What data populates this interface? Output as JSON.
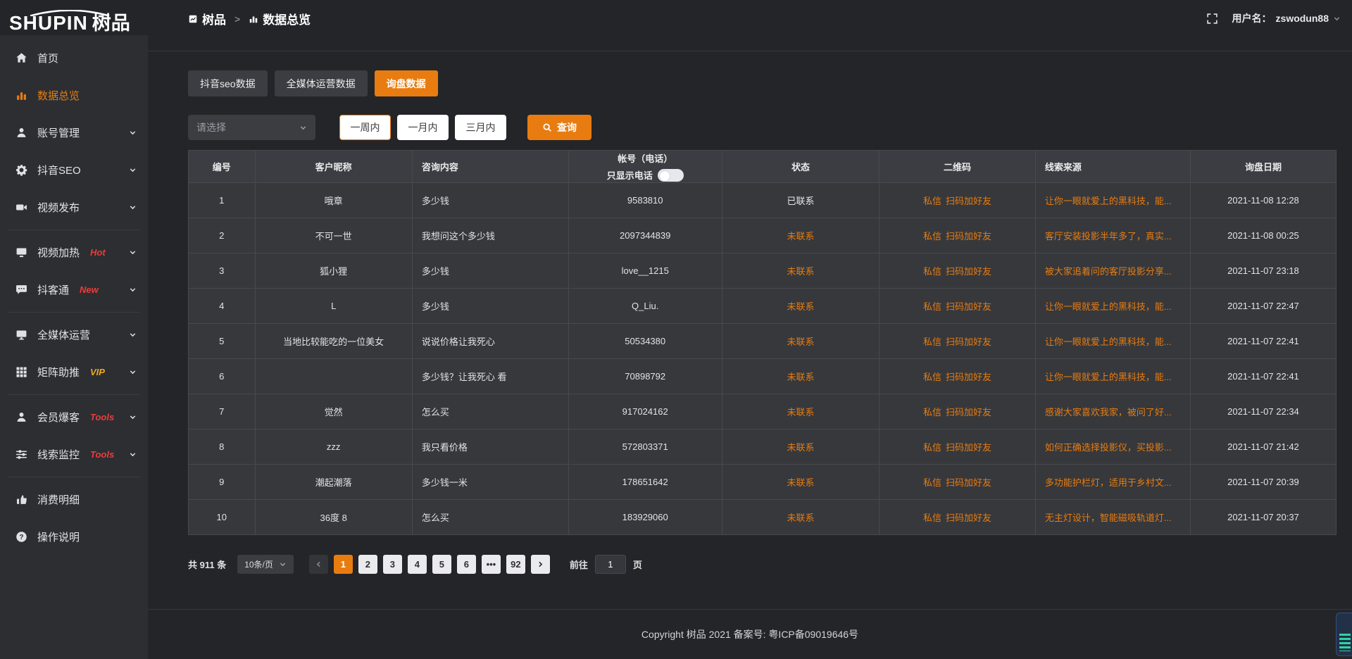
{
  "colors": {
    "accent_orange": "#e87c10",
    "badge_red": "#ee3b3b",
    "badge_gold": "#f0a91e",
    "status_pending": "#e87c10",
    "page_active": "#e87c10"
  },
  "logo": {
    "brand_en": "SHUPIN",
    "brand_cn": "树品"
  },
  "topbar": {
    "breadcrumb_root": "树品",
    "breadcrumb_current": "数据总览",
    "username_label": "用户名：",
    "username": "zswodun88"
  },
  "sidebar": {
    "items": [
      {
        "key": "home",
        "icon": "home-icon",
        "label": "首页",
        "badge": "",
        "badge_style": "",
        "chevron": false,
        "active": false,
        "divider_after": false
      },
      {
        "key": "data-overview",
        "icon": "bar-chart-icon",
        "label": "数据总览",
        "badge": "",
        "badge_style": "",
        "chevron": false,
        "active": true,
        "divider_after": false
      },
      {
        "key": "account-manage",
        "icon": "user-icon",
        "label": "账号管理",
        "badge": "",
        "badge_style": "",
        "chevron": true,
        "active": false,
        "divider_after": false
      },
      {
        "key": "douyin-seo",
        "icon": "gear-icon",
        "label": "抖音SEO",
        "badge": "",
        "badge_style": "",
        "chevron": true,
        "active": false,
        "divider_after": false
      },
      {
        "key": "video-publish",
        "icon": "camera-icon",
        "label": "视频发布",
        "badge": "",
        "badge_style": "",
        "chevron": true,
        "active": false,
        "divider_after": true
      },
      {
        "key": "video-heat",
        "icon": "heat-monitor-icon",
        "label": "视频加热",
        "badge": "Hot",
        "badge_style": "red",
        "chevron": true,
        "active": false,
        "divider_after": false
      },
      {
        "key": "douketong",
        "icon": "chat-icon",
        "label": "抖客通",
        "badge": "New",
        "badge_style": "red",
        "chevron": true,
        "active": false,
        "divider_after": true
      },
      {
        "key": "all-media",
        "icon": "monitor-icon",
        "label": "全媒体运营",
        "badge": "",
        "badge_style": "",
        "chevron": true,
        "active": false,
        "divider_after": false
      },
      {
        "key": "matrix-boost",
        "icon": "grid-icon",
        "label": "矩阵助推",
        "badge": "VIP",
        "badge_style": "gold",
        "chevron": true,
        "active": false,
        "divider_after": true
      },
      {
        "key": "member-burst",
        "icon": "member-icon",
        "label": "会员爆客",
        "badge": "Tools",
        "badge_style": "red",
        "chevron": true,
        "active": false,
        "divider_after": false
      },
      {
        "key": "clue-monitor",
        "icon": "sliders-icon",
        "label": "线索监控",
        "badge": "Tools",
        "badge_style": "red",
        "chevron": true,
        "active": false,
        "divider_after": true
      },
      {
        "key": "spend-detail",
        "icon": "spend-icon",
        "label": "消费明细",
        "badge": "",
        "badge_style": "",
        "chevron": false,
        "active": false,
        "divider_after": false
      },
      {
        "key": "help",
        "icon": "question-icon",
        "label": "操作说明",
        "badge": "",
        "badge_style": "",
        "chevron": false,
        "active": false,
        "divider_after": false
      }
    ]
  },
  "tabs": [
    {
      "key": "douyin-seo-data",
      "label": "抖音seo数据",
      "active": false
    },
    {
      "key": "all-media-data",
      "label": "全媒体运营数据",
      "active": false
    },
    {
      "key": "inquiry-data",
      "label": "询盘数据",
      "active": true
    }
  ],
  "filters": {
    "select_placeholder": "请选择",
    "range_buttons": [
      {
        "label": "一周内",
        "active": true
      },
      {
        "label": "一月内",
        "active": false
      },
      {
        "label": "三月内",
        "active": false
      }
    ],
    "search_label": "查询"
  },
  "table": {
    "columns": [
      {
        "key": "id",
        "label": "编号",
        "align": "center"
      },
      {
        "key": "nickname",
        "label": "客户昵称",
        "align": "center"
      },
      {
        "key": "content",
        "label": "咨询内容",
        "align": "left"
      },
      {
        "key": "account",
        "label": "帐号（电话）",
        "align": "center",
        "toggle_label": "只显示电话"
      },
      {
        "key": "status",
        "label": "状态",
        "align": "center"
      },
      {
        "key": "qr",
        "label": "二维码",
        "align": "center"
      },
      {
        "key": "source",
        "label": "线索来源",
        "align": "left"
      },
      {
        "key": "date",
        "label": "询盘日期",
        "align": "center"
      }
    ],
    "rows": [
      {
        "id": "1",
        "nickname": "哦章",
        "content": "多少钱",
        "account": "9583810",
        "status": "已联系",
        "contacted": true,
        "qr_links": [
          "私信",
          "扫码加好友"
        ],
        "source": "让你一眼就爱上的黑科技，能...",
        "date": "2021-11-08 12:28"
      },
      {
        "id": "2",
        "nickname": "不可一世",
        "content": "我想问这个多少钱",
        "account": "2097344839",
        "status": "未联系",
        "contacted": false,
        "qr_links": [
          "私信",
          "扫码加好友"
        ],
        "source": "客厅安装投影半年多了，真实...",
        "date": "2021-11-08 00:25"
      },
      {
        "id": "3",
        "nickname": "狐小狸",
        "content": "多少钱",
        "account": "love__1215",
        "status": "未联系",
        "contacted": false,
        "qr_links": [
          "私信",
          "扫码加好友"
        ],
        "source": "被大家追着问的客厅投影分享...",
        "date": "2021-11-07 23:18"
      },
      {
        "id": "4",
        "nickname": "L",
        "content": "多少钱",
        "account": "Q_Liu.",
        "status": "未联系",
        "contacted": false,
        "qr_links": [
          "私信",
          "扫码加好友"
        ],
        "source": "让你一眼就爱上的黑科技，能...",
        "date": "2021-11-07 22:47"
      },
      {
        "id": "5",
        "nickname": "当地比较能吃的一位美女",
        "content": "说说价格让我死心",
        "account": "50534380",
        "status": "未联系",
        "contacted": false,
        "qr_links": [
          "私信",
          "扫码加好友"
        ],
        "source": "让你一眼就爱上的黑科技，能...",
        "date": "2021-11-07 22:41"
      },
      {
        "id": "6",
        "nickname": "",
        "content": "多少钱？让我死心 看",
        "account": "70898792",
        "status": "未联系",
        "contacted": false,
        "qr_links": [
          "私信",
          "扫码加好友"
        ],
        "source": "让你一眼就爱上的黑科技，能...",
        "date": "2021-11-07 22:41"
      },
      {
        "id": "7",
        "nickname": "觉然",
        "content": "怎么买",
        "account": "917024162",
        "status": "未联系",
        "contacted": false,
        "qr_links": [
          "私信",
          "扫码加好友"
        ],
        "source": "感谢大家喜欢我家，被问了好...",
        "date": "2021-11-07 22:34"
      },
      {
        "id": "8",
        "nickname": "zzz",
        "content": "我只看价格",
        "account": "572803371",
        "status": "未联系",
        "contacted": false,
        "qr_links": [
          "私信",
          "扫码加好友"
        ],
        "source": "如何正确选择投影仪，买投影...",
        "date": "2021-11-07 21:42"
      },
      {
        "id": "9",
        "nickname": "潮起潮落",
        "content": "多少钱一米",
        "account": "178651642",
        "status": "未联系",
        "contacted": false,
        "qr_links": [
          "私信",
          "扫码加好友"
        ],
        "source": "多功能护栏灯，适用于乡村文...",
        "date": "2021-11-07 20:39"
      },
      {
        "id": "10",
        "nickname": "36度 8",
        "content": "怎么买",
        "account": "183929060",
        "status": "未联系",
        "contacted": false,
        "qr_links": [
          "私信",
          "扫码加好友"
        ],
        "source": "无主灯设计，智能磁吸轨道灯...",
        "date": "2021-11-07 20:37"
      }
    ]
  },
  "pagination": {
    "total_label": "共 911 条",
    "page_size": "10条/页",
    "pages": [
      "1",
      "2",
      "3",
      "4",
      "5",
      "6",
      "...",
      "92"
    ],
    "active_page": "1",
    "goto_label": "前往",
    "goto_value": "1",
    "page_unit": "页"
  },
  "footer": {
    "copyright": "Copyright 树品 2021 备案号: 粤ICP备09019646号"
  }
}
